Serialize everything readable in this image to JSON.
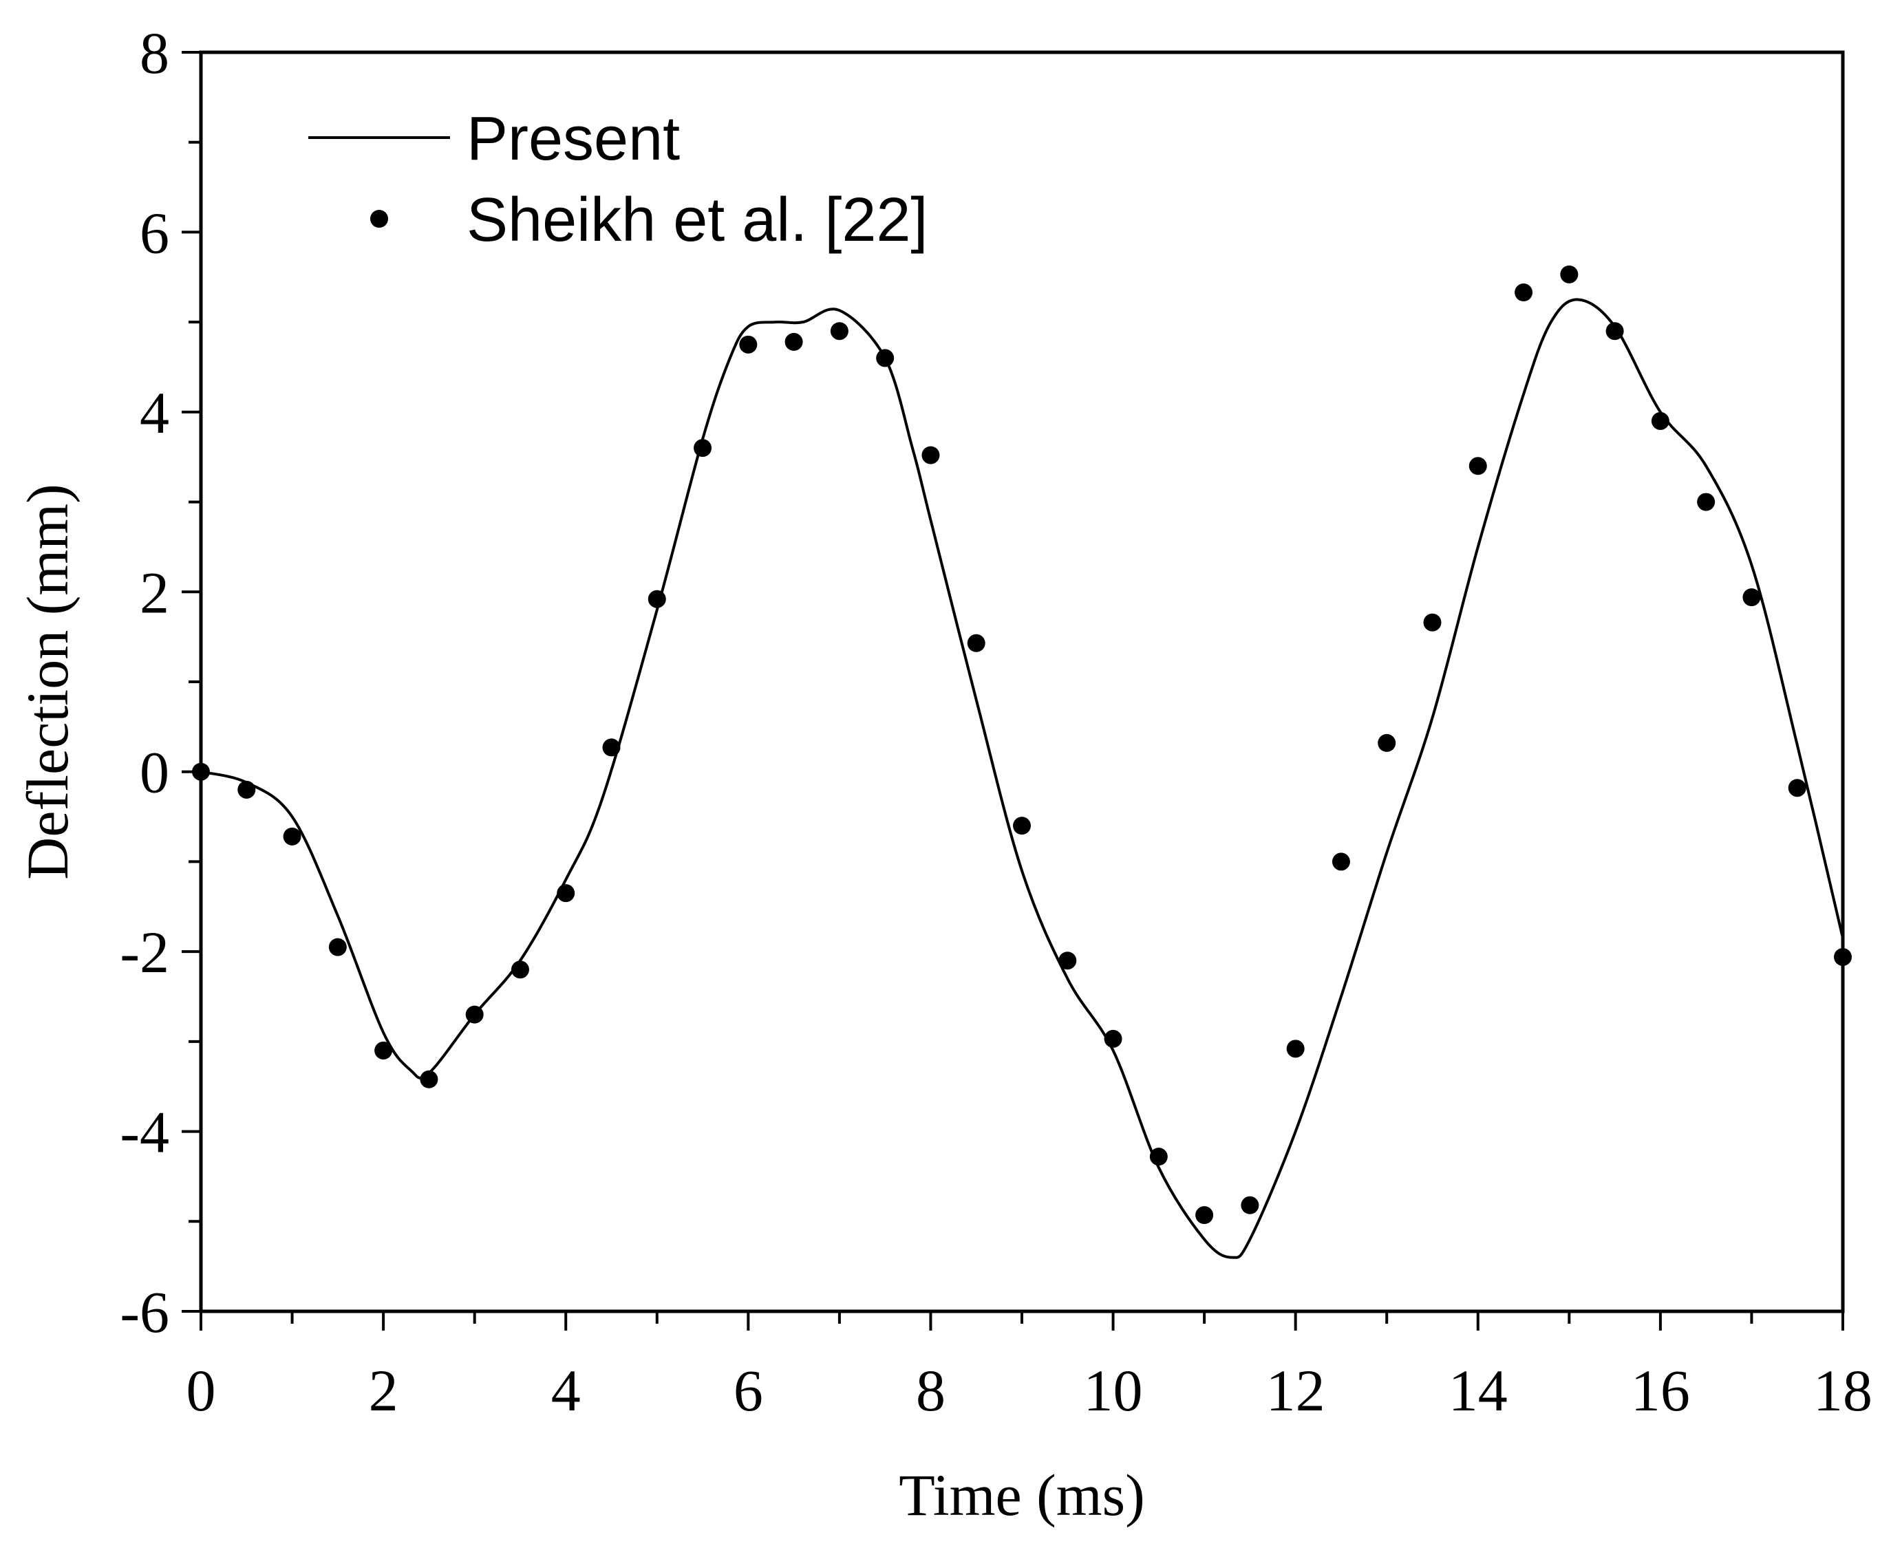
{
  "chart_data": {
    "type": "line",
    "xlabel": "Time (ms)",
    "ylabel": "Deflection (mm)",
    "xlim": [
      0,
      18
    ],
    "ylim": [
      -6,
      8
    ],
    "x_ticks": [
      0,
      2,
      4,
      6,
      8,
      10,
      12,
      14,
      16,
      18
    ],
    "y_ticks": [
      -6,
      -4,
      -2,
      0,
      2,
      4,
      6,
      8
    ],
    "grid": false,
    "legend_position": "top-left",
    "series": [
      {
        "name": "Present",
        "style": "line",
        "color": "#000000",
        "points": [
          [
            0,
            0
          ],
          [
            0.5,
            -0.12
          ],
          [
            1.0,
            -0.5
          ],
          [
            1.5,
            -1.6
          ],
          [
            2.0,
            -2.9
          ],
          [
            2.3,
            -3.32
          ],
          [
            2.5,
            -3.35
          ],
          [
            3.0,
            -2.7
          ],
          [
            3.5,
            -2.1
          ],
          [
            4.0,
            -1.2
          ],
          [
            4.4,
            -0.3
          ],
          [
            5.0,
            1.8
          ],
          [
            5.5,
            3.7
          ],
          [
            5.8,
            4.6
          ],
          [
            6.0,
            4.95
          ],
          [
            6.3,
            5.0
          ],
          [
            6.6,
            5.0
          ],
          [
            7.0,
            5.13
          ],
          [
            7.5,
            4.6
          ],
          [
            7.8,
            3.6
          ],
          [
            8.0,
            2.8
          ],
          [
            8.5,
            0.8
          ],
          [
            9.0,
            -1.1
          ],
          [
            9.5,
            -2.3
          ],
          [
            10.0,
            -3.1
          ],
          [
            10.5,
            -4.4
          ],
          [
            11.0,
            -5.2
          ],
          [
            11.3,
            -5.4
          ],
          [
            11.5,
            -5.2
          ],
          [
            12.0,
            -4.0
          ],
          [
            12.5,
            -2.5
          ],
          [
            13.0,
            -0.9
          ],
          [
            13.5,
            0.6
          ],
          [
            14.0,
            2.5
          ],
          [
            14.5,
            4.2
          ],
          [
            14.8,
            5.0
          ],
          [
            15.1,
            5.25
          ],
          [
            15.5,
            4.95
          ],
          [
            16.0,
            4.0
          ],
          [
            16.5,
            3.4
          ],
          [
            17.0,
            2.3
          ],
          [
            17.5,
            0.3
          ],
          [
            18.0,
            -1.85
          ]
        ]
      },
      {
        "name": "Sheikh et al. [22]",
        "style": "markers",
        "color": "#000000",
        "points": [
          [
            0,
            0
          ],
          [
            0.5,
            -0.2
          ],
          [
            1.0,
            -0.72
          ],
          [
            1.5,
            -1.95
          ],
          [
            2.0,
            -3.1
          ],
          [
            2.5,
            -3.42
          ],
          [
            3.0,
            -2.7
          ],
          [
            3.5,
            -2.2
          ],
          [
            4.0,
            -1.35
          ],
          [
            4.5,
            0.27
          ],
          [
            5.0,
            1.92
          ],
          [
            5.5,
            3.6
          ],
          [
            6.0,
            4.75
          ],
          [
            6.5,
            4.78
          ],
          [
            7.0,
            4.9
          ],
          [
            7.5,
            4.6
          ],
          [
            8.0,
            3.52
          ],
          [
            8.5,
            1.43
          ],
          [
            9.0,
            -0.6
          ],
          [
            9.5,
            -2.1
          ],
          [
            10.0,
            -2.97
          ],
          [
            10.5,
            -4.28
          ],
          [
            11.0,
            -4.93
          ],
          [
            11.5,
            -4.82
          ],
          [
            12.0,
            -3.08
          ],
          [
            12.5,
            -1.0
          ],
          [
            13.0,
            0.32
          ],
          [
            13.5,
            1.66
          ],
          [
            14.0,
            3.4
          ],
          [
            14.5,
            5.33
          ],
          [
            15.0,
            5.53
          ],
          [
            15.5,
            4.9
          ],
          [
            16.0,
            3.9
          ],
          [
            16.5,
            3.0
          ],
          [
            17.0,
            1.94
          ],
          [
            17.5,
            -0.18
          ],
          [
            18.0,
            -2.06
          ]
        ]
      }
    ]
  }
}
